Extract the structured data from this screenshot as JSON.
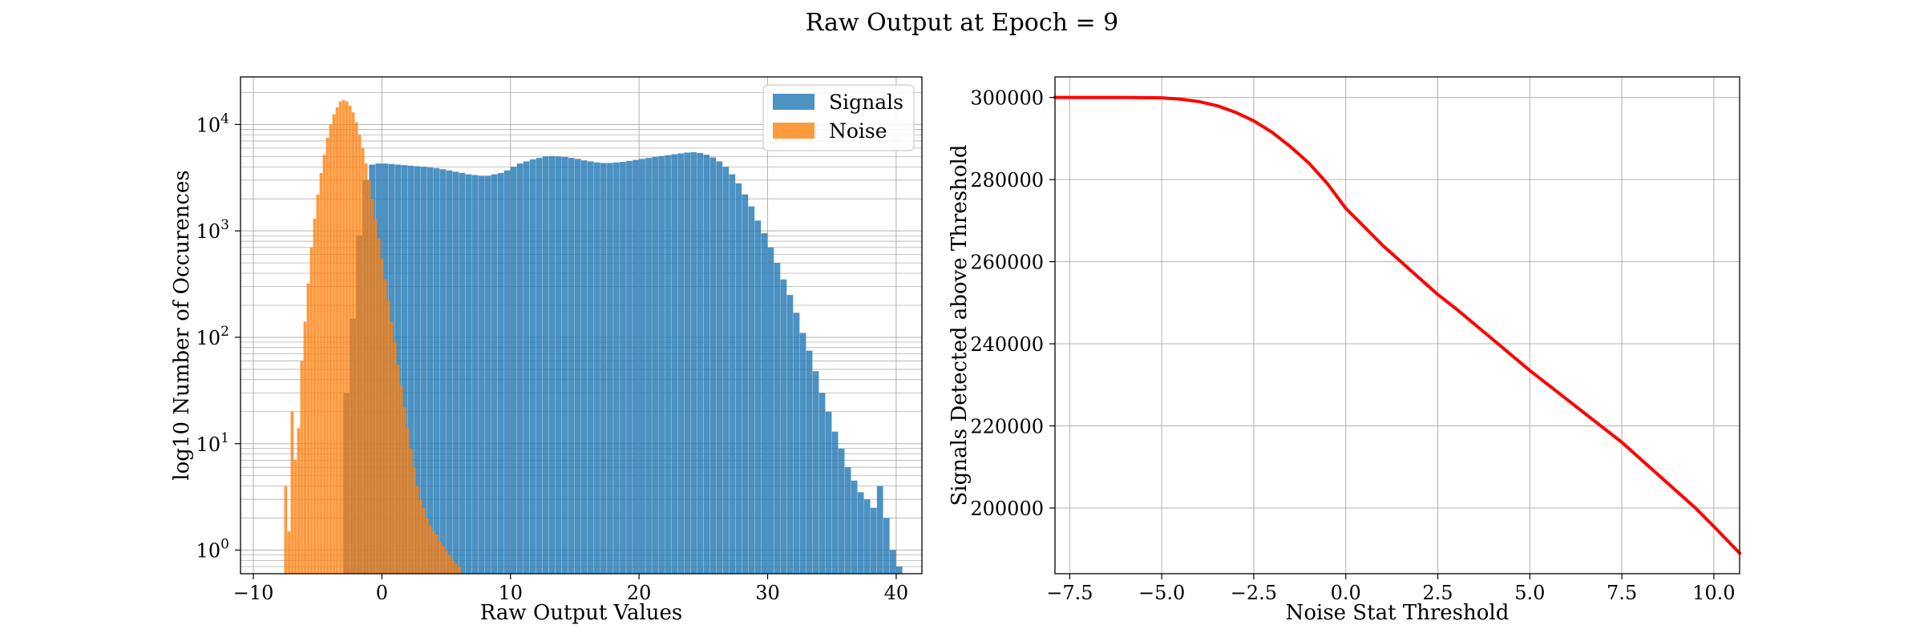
{
  "figure": {
    "suptitle": "Raw Output at Epoch = 9"
  },
  "colors": {
    "signals": "#1f77b4",
    "noise": "#ff7f0e",
    "curve": "#ff0000",
    "grid": "#b0b0b0"
  },
  "chart_data": [
    {
      "type": "bar",
      "subtype": "histogram",
      "yscale": "log",
      "title": "",
      "xlabel": "Raw Output Values",
      "ylabel": "log10 Number of Occurences",
      "xlim": [
        -11,
        42
      ],
      "ylim": [
        0.6,
        28000
      ],
      "xticks": [
        -10,
        0,
        10,
        20,
        30,
        40
      ],
      "xtick_labels": [
        "−10",
        "0",
        "10",
        "20",
        "30",
        "40"
      ],
      "yticks": [
        1,
        10,
        100,
        1000,
        10000
      ],
      "ytick_labels": [
        "10",
        "10",
        "10",
        "10",
        "10"
      ],
      "ytick_exponents": [
        "0",
        "1",
        "2",
        "3",
        "4"
      ],
      "grid": true,
      "legend_position": "upper right",
      "series": [
        {
          "name": "Signals",
          "color_key": "signals",
          "alpha": 0.8,
          "bins": [
            [
              -3.0,
              30
            ],
            [
              -2.5,
              150
            ],
            [
              -2.0,
              900
            ],
            [
              -1.5,
              3000
            ],
            [
              -1.0,
              4200
            ],
            [
              -0.5,
              4300
            ],
            [
              0.0,
              4300
            ],
            [
              0.5,
              4250
            ],
            [
              1.0,
              4200
            ],
            [
              1.5,
              4150
            ],
            [
              2.0,
              4100
            ],
            [
              2.5,
              4050
            ],
            [
              3.0,
              4000
            ],
            [
              3.5,
              3950
            ],
            [
              4.0,
              3900
            ],
            [
              4.5,
              3800
            ],
            [
              5.0,
              3700
            ],
            [
              5.5,
              3600
            ],
            [
              6.0,
              3500
            ],
            [
              6.5,
              3400
            ],
            [
              7.0,
              3350
            ],
            [
              7.5,
              3300
            ],
            [
              8.0,
              3300
            ],
            [
              8.5,
              3400
            ],
            [
              9.0,
              3500
            ],
            [
              9.5,
              3700
            ],
            [
              10.0,
              4000
            ],
            [
              10.5,
              4300
            ],
            [
              11.0,
              4500
            ],
            [
              11.5,
              4700
            ],
            [
              12.0,
              4850
            ],
            [
              12.5,
              5000
            ],
            [
              13.0,
              5050
            ],
            [
              13.5,
              5000
            ],
            [
              14.0,
              4950
            ],
            [
              14.5,
              4850
            ],
            [
              15.0,
              4750
            ],
            [
              15.5,
              4600
            ],
            [
              16.0,
              4500
            ],
            [
              16.5,
              4400
            ],
            [
              17.0,
              4350
            ],
            [
              17.5,
              4350
            ],
            [
              18.0,
              4400
            ],
            [
              18.5,
              4450
            ],
            [
              19.0,
              4550
            ],
            [
              19.5,
              4650
            ],
            [
              20.0,
              4750
            ],
            [
              20.5,
              4850
            ],
            [
              21.0,
              4950
            ],
            [
              21.5,
              5050
            ],
            [
              22.0,
              5150
            ],
            [
              22.5,
              5250
            ],
            [
              23.0,
              5350
            ],
            [
              23.5,
              5450
            ],
            [
              24.0,
              5500
            ],
            [
              24.5,
              5400
            ],
            [
              25.0,
              5200
            ],
            [
              25.5,
              4900
            ],
            [
              26.0,
              4500
            ],
            [
              26.5,
              4000
            ],
            [
              27.0,
              3400
            ],
            [
              27.5,
              2800
            ],
            [
              28.0,
              2200
            ],
            [
              28.5,
              1700
            ],
            [
              29.0,
              1250
            ],
            [
              29.5,
              950
            ],
            [
              30.0,
              700
            ],
            [
              30.5,
              500
            ],
            [
              31.0,
              350
            ],
            [
              31.5,
              250
            ],
            [
              32.0,
              170
            ],
            [
              32.5,
              110
            ],
            [
              33.0,
              75
            ],
            [
              33.5,
              48
            ],
            [
              34.0,
              30
            ],
            [
              34.5,
              20
            ],
            [
              35.0,
              13
            ],
            [
              35.5,
              9
            ],
            [
              36.0,
              6
            ],
            [
              36.5,
              4.5
            ],
            [
              37.0,
              3.5
            ],
            [
              37.5,
              3
            ],
            [
              38.0,
              2.5
            ],
            [
              38.5,
              4
            ],
            [
              39.0,
              2
            ],
            [
              39.5,
              1
            ],
            [
              40.0,
              0.7
            ]
          ]
        },
        {
          "name": "Noise",
          "color_key": "noise",
          "alpha": 0.8,
          "bins": [
            [
              -7.6,
              4
            ],
            [
              -7.35,
              1.5
            ],
            [
              -7.1,
              20
            ],
            [
              -6.85,
              7
            ],
            [
              -6.6,
              14
            ],
            [
              -6.35,
              60
            ],
            [
              -6.1,
              140
            ],
            [
              -5.85,
              320
            ],
            [
              -5.6,
              700
            ],
            [
              -5.35,
              1300
            ],
            [
              -5.1,
              2200
            ],
            [
              -4.85,
              3500
            ],
            [
              -4.6,
              5200
            ],
            [
              -4.35,
              7500
            ],
            [
              -4.1,
              10000
            ],
            [
              -3.85,
              12500
            ],
            [
              -3.6,
              14500
            ],
            [
              -3.35,
              16500
            ],
            [
              -3.1,
              17000
            ],
            [
              -2.85,
              16500
            ],
            [
              -2.6,
              15000
            ],
            [
              -2.35,
              13000
            ],
            [
              -2.1,
              10500
            ],
            [
              -1.85,
              8000
            ],
            [
              -1.6,
              6000
            ],
            [
              -1.35,
              4300
            ],
            [
              -1.1,
              3000
            ],
            [
              -0.85,
              2000
            ],
            [
              -0.6,
              1300
            ],
            [
              -0.35,
              850
            ],
            [
              -0.1,
              550
            ],
            [
              0.15,
              350
            ],
            [
              0.4,
              220
            ],
            [
              0.65,
              140
            ],
            [
              0.9,
              90
            ],
            [
              1.15,
              55
            ],
            [
              1.4,
              35
            ],
            [
              1.65,
              22
            ],
            [
              1.9,
              14
            ],
            [
              2.15,
              9
            ],
            [
              2.4,
              6
            ],
            [
              2.65,
              4
            ],
            [
              2.9,
              3
            ],
            [
              3.15,
              2.5
            ],
            [
              3.4,
              2
            ],
            [
              3.65,
              1.7
            ],
            [
              3.9,
              1.5
            ],
            [
              4.15,
              1.4
            ],
            [
              4.4,
              1.2
            ],
            [
              4.65,
              1.1
            ],
            [
              4.9,
              1.0
            ],
            [
              5.15,
              0.9
            ],
            [
              5.4,
              0.8
            ],
            [
              5.65,
              0.75
            ],
            [
              5.9,
              0.7
            ]
          ]
        }
      ]
    },
    {
      "type": "line",
      "title": "",
      "xlabel": "Noise Stat Threshold",
      "ylabel": "Signals Detected above Threshold",
      "xlim": [
        -7.9,
        10.7
      ],
      "ylim": [
        184000,
        305000
      ],
      "xticks": [
        -7.5,
        -5.0,
        -2.5,
        0.0,
        2.5,
        5.0,
        7.5,
        10.0
      ],
      "xtick_labels": [
        "−7.5",
        "−5.0",
        "−2.5",
        "0.0",
        "2.5",
        "5.0",
        "7.5",
        "10.0"
      ],
      "yticks": [
        200000,
        220000,
        240000,
        260000,
        280000,
        300000
      ],
      "ytick_labels": [
        "200000",
        "220000",
        "240000",
        "260000",
        "280000",
        "300000"
      ],
      "grid": true,
      "series": [
        {
          "color_key": "curve",
          "x": [
            -7.9,
            -6.0,
            -5.0,
            -4.5,
            -4.0,
            -3.5,
            -3.0,
            -2.5,
            -2.0,
            -1.5,
            -1.0,
            -0.5,
            0.0,
            0.5,
            1.0,
            2.0,
            2.5,
            3.0,
            4.0,
            5.0,
            6.0,
            7.0,
            7.5,
            8.0,
            9.0,
            9.5,
            10.0,
            10.7
          ],
          "values": [
            300000,
            300000,
            299900,
            299600,
            299000,
            298000,
            296400,
            294300,
            291500,
            288000,
            284000,
            279000,
            273000,
            268500,
            264000,
            256000,
            252000,
            248500,
            241000,
            233500,
            226500,
            219500,
            216000,
            212000,
            204000,
            200000,
            195500,
            189000
          ]
        }
      ]
    }
  ]
}
